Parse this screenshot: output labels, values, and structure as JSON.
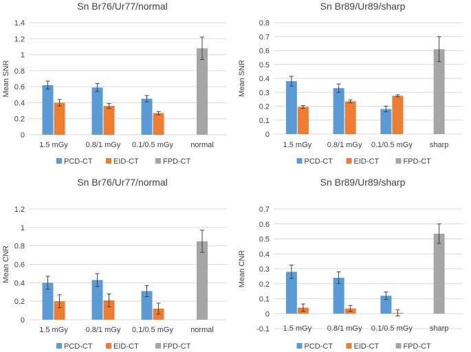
{
  "colors": {
    "PCD-CT": "#5b9bd5",
    "EID-CT": "#ed7d31",
    "FPD-CT": "#a5a5a5",
    "grid": "#d9d9d9",
    "text": "#404040",
    "errorbar": "#404040"
  },
  "chart_data": [
    {
      "type": "bar",
      "title": "Sn Br76/Ur77/normal",
      "ylabel": "Mean SNR",
      "xlabel": "",
      "categories": [
        "1.5 mGy",
        "0.8/1 mGy",
        "0.1/0.5 mGy",
        "normal"
      ],
      "ylim": [
        0,
        1.4
      ],
      "yticks": [
        0,
        0.2,
        0.4,
        0.6,
        0.8,
        1,
        1.2,
        1.4
      ],
      "grid": true,
      "legend": "bottom",
      "series": [
        {
          "name": "PCD-CT",
          "values": [
            0.62,
            0.59,
            0.45,
            null
          ],
          "errors": [
            0.05,
            0.05,
            0.04,
            null
          ]
        },
        {
          "name": "EID-CT",
          "values": [
            0.4,
            0.36,
            0.27,
            null
          ],
          "errors": [
            0.04,
            0.03,
            0.02,
            null
          ]
        },
        {
          "name": "FPD-CT",
          "values": [
            null,
            null,
            null,
            1.08
          ],
          "errors": [
            null,
            null,
            null,
            0.14
          ]
        }
      ]
    },
    {
      "type": "bar",
      "title": "Sn Br89/Ur89/sharp",
      "ylabel": "Mean SNR",
      "xlabel": "",
      "categories": [
        "1.5 mGy",
        "0.8/1 mGy",
        "0.1/0.5 mGy",
        "sharp"
      ],
      "ylim": [
        0,
        0.8
      ],
      "yticks": [
        0,
        0.1,
        0.2,
        0.3,
        0.4,
        0.5,
        0.6,
        0.7,
        0.8
      ],
      "grid": true,
      "legend": "bottom",
      "series": [
        {
          "name": "PCD-CT",
          "values": [
            0.38,
            0.33,
            0.18,
            null
          ],
          "errors": [
            0.035,
            0.03,
            0.02,
            null
          ]
        },
        {
          "name": "EID-CT",
          "values": [
            0.195,
            0.235,
            0.275,
            null
          ],
          "errors": [
            0.01,
            0.01,
            0.007,
            null
          ]
        },
        {
          "name": "FPD-CT",
          "values": [
            null,
            null,
            null,
            0.61
          ],
          "errors": [
            null,
            null,
            null,
            0.09
          ]
        }
      ]
    },
    {
      "type": "bar",
      "title": "Sn Br76/Ur77/normal",
      "ylabel": "Mean CNR",
      "xlabel": "",
      "categories": [
        "1.5 mGy",
        "0.8/1 mGy",
        "0.1/0.5 mGy",
        "normal"
      ],
      "ylim": [
        0,
        1.2
      ],
      "yticks": [
        0,
        0.2,
        0.4,
        0.6,
        0.8,
        1,
        1.2
      ],
      "grid": true,
      "legend": "bottom",
      "series": [
        {
          "name": "PCD-CT",
          "values": [
            0.4,
            0.43,
            0.31,
            null
          ],
          "errors": [
            0.07,
            0.07,
            0.06,
            null
          ]
        },
        {
          "name": "EID-CT",
          "values": [
            0.2,
            0.21,
            0.12,
            null
          ],
          "errors": [
            0.07,
            0.07,
            0.06,
            null
          ]
        },
        {
          "name": "FPD-CT",
          "values": [
            null,
            null,
            null,
            0.85
          ],
          "errors": [
            null,
            null,
            null,
            0.12
          ]
        }
      ]
    },
    {
      "type": "bar",
      "title": "Sn Br89/Ur89/sharp",
      "ylabel": "Mean CNR",
      "xlabel": "",
      "categories": [
        "1.5 mGy",
        "0.8/1 mGy",
        "0.1/0.5 mGy",
        "sharp"
      ],
      "ylim": [
        -0.1,
        0.7
      ],
      "yticks": [
        -0.1,
        0,
        0.1,
        0.2,
        0.3,
        0.4,
        0.5,
        0.6,
        0.7
      ],
      "grid": true,
      "legend": "bottom",
      "series": [
        {
          "name": "PCD-CT",
          "values": [
            0.28,
            0.24,
            0.12,
            null
          ],
          "errors": [
            0.045,
            0.04,
            0.025,
            null
          ]
        },
        {
          "name": "EID-CT",
          "values": [
            0.04,
            0.035,
            0.005,
            null
          ],
          "errors": [
            0.025,
            0.02,
            0.02,
            null
          ]
        },
        {
          "name": "FPD-CT",
          "values": [
            null,
            null,
            null,
            0.535
          ],
          "errors": [
            null,
            null,
            null,
            0.065
          ]
        }
      ]
    }
  ]
}
